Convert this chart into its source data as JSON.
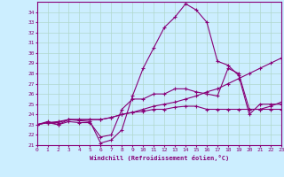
{
  "xlabel": "Windchill (Refroidissement éolien,°C)",
  "background_color": "#cceeff",
  "grid_color": "#b0d8cc",
  "line_color": "#880077",
  "x_hours": [
    0,
    1,
    2,
    3,
    4,
    5,
    6,
    7,
    8,
    9,
    10,
    11,
    12,
    13,
    14,
    15,
    16,
    17,
    18,
    19,
    20,
    21,
    22,
    23
  ],
  "series1": [
    23.0,
    23.3,
    23.0,
    23.5,
    23.4,
    23.3,
    21.2,
    21.5,
    22.5,
    25.8,
    28.5,
    30.5,
    32.5,
    33.5,
    34.8,
    34.2,
    33.0,
    29.2,
    28.8,
    27.8,
    24.0,
    25.0,
    25.0,
    25.0
  ],
  "series2": [
    23.0,
    23.2,
    23.0,
    23.3,
    23.2,
    23.2,
    21.8,
    22.0,
    24.5,
    25.5,
    25.5,
    26.0,
    26.0,
    26.5,
    26.5,
    26.2,
    26.0,
    25.8,
    28.5,
    28.0,
    24.5,
    24.5,
    24.8,
    25.2
  ],
  "series3": [
    23.0,
    23.2,
    23.3,
    23.5,
    23.5,
    23.5,
    23.5,
    23.7,
    24.0,
    24.2,
    24.5,
    24.8,
    25.0,
    25.2,
    25.5,
    25.8,
    26.2,
    26.5,
    27.0,
    27.5,
    28.0,
    28.5,
    29.0,
    29.5
  ],
  "series4": [
    23.0,
    23.2,
    23.2,
    23.5,
    23.5,
    23.5,
    23.5,
    23.7,
    24.0,
    24.2,
    24.3,
    24.5,
    24.5,
    24.7,
    24.8,
    24.8,
    24.5,
    24.5,
    24.5,
    24.5,
    24.5,
    24.5,
    24.5,
    24.5
  ],
  "ylim": [
    21,
    35
  ],
  "xlim": [
    0,
    23
  ],
  "yticks": [
    21,
    22,
    23,
    24,
    25,
    26,
    27,
    28,
    29,
    30,
    31,
    32,
    33,
    34
  ],
  "xticks": [
    0,
    1,
    2,
    3,
    4,
    5,
    6,
    7,
    8,
    9,
    10,
    11,
    12,
    13,
    14,
    15,
    16,
    17,
    18,
    19,
    20,
    21,
    22,
    23
  ]
}
